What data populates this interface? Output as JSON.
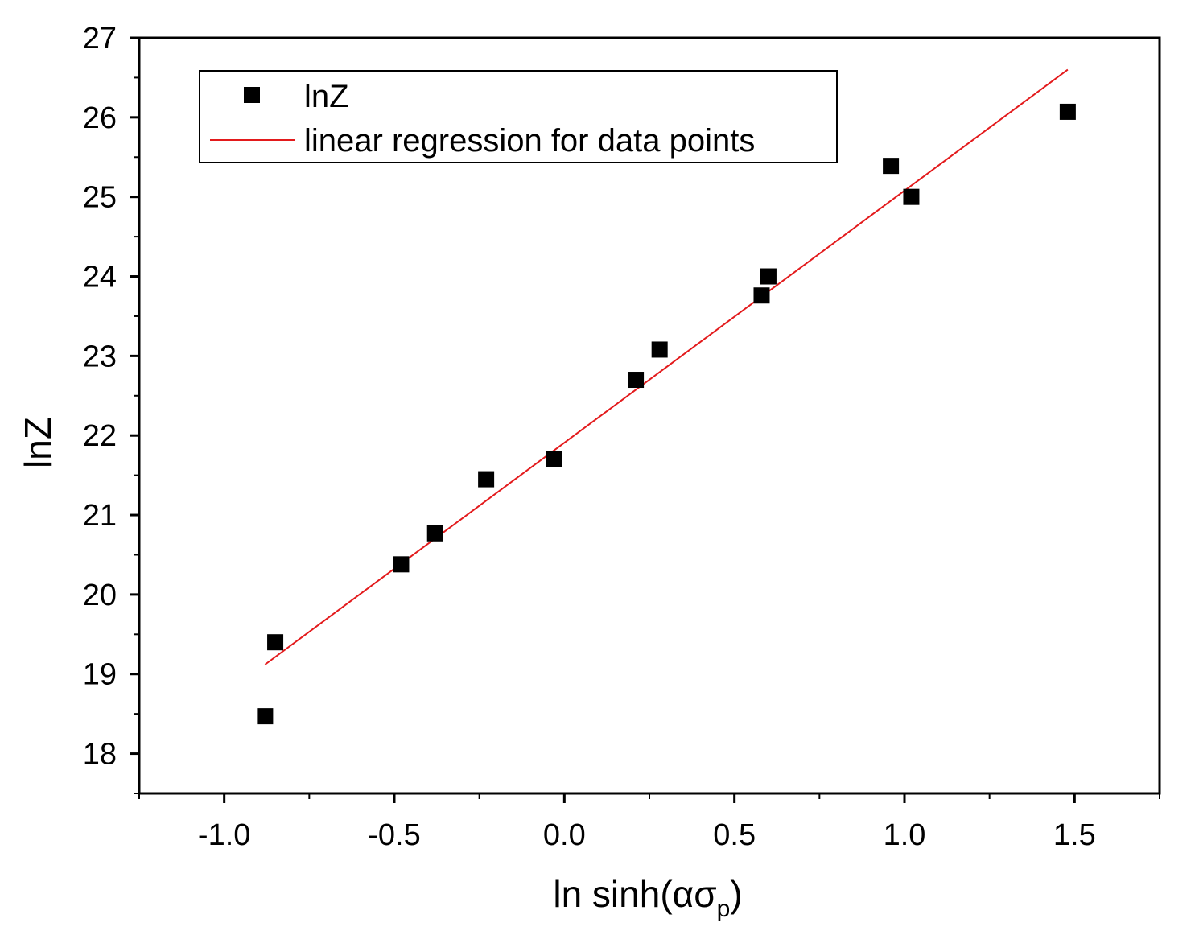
{
  "chart_data": {
    "type": "scatter",
    "title": "",
    "xlabel": "ln sinh(ασ",
    "xlabel_subscript": "p",
    "xlabel_suffix": ")",
    "ylabel": "lnZ",
    "xlim": [
      -1.25,
      1.75
    ],
    "ylim": [
      17.5,
      27
    ],
    "x_ticks": [
      -1.0,
      -0.5,
      0.0,
      0.5,
      1.0,
      1.5
    ],
    "x_tick_labels": [
      "-1.0",
      "-0.5",
      "0.0",
      "0.5",
      "1.0",
      "1.5"
    ],
    "y_ticks": [
      18,
      19,
      20,
      21,
      22,
      23,
      24,
      25,
      26,
      27
    ],
    "y_tick_labels": [
      "18",
      "19",
      "20",
      "21",
      "22",
      "23",
      "24",
      "25",
      "26",
      "27"
    ],
    "grid": false,
    "legend": {
      "placement": "top-left",
      "entries": [
        "lnZ",
        "linear regression for data points"
      ]
    },
    "series": [
      {
        "name": "lnZ",
        "kind": "scatter",
        "marker": "square",
        "color": "#000000",
        "x": [
          -0.88,
          -0.85,
          -0.48,
          -0.38,
          -0.23,
          -0.03,
          0.21,
          0.28,
          0.58,
          0.6,
          0.96,
          1.02,
          1.48
        ],
        "y": [
          18.47,
          19.4,
          20.38,
          20.77,
          21.45,
          21.7,
          22.7,
          23.08,
          23.76,
          24.0,
          25.39,
          25.0,
          26.07
        ]
      },
      {
        "name": "linear regression for data points",
        "kind": "line",
        "color": "#e31a1c",
        "x": [
          -0.88,
          1.48
        ],
        "y": [
          19.12,
          26.6
        ]
      }
    ]
  }
}
